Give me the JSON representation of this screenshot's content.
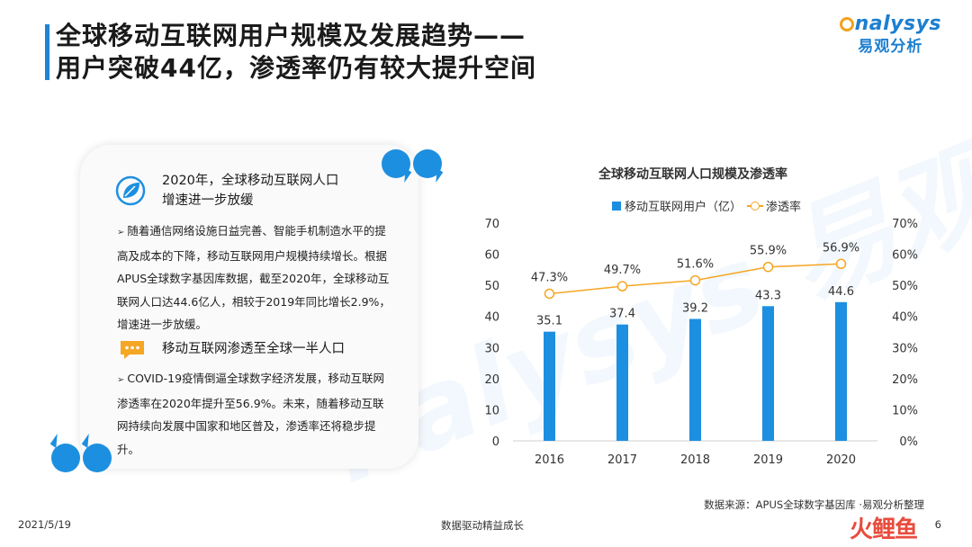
{
  "header": {
    "title_line1": "全球移动互联网用户规模及发展趋势——",
    "title_line2": "用户突破44亿，渗透率仍有较大提升空间",
    "logo_text": "nalysys",
    "logo_sub": "易观分析"
  },
  "watermark": {
    "text": "nalysys 易观分析"
  },
  "card": {
    "section1": {
      "icon": "leaf-globe-icon",
      "heading_line1": "2020年，全球移动互联网人口",
      "heading_line2": "增速进一步放缓",
      "bullet": "随着通信网络设施日益完善、智能手机制造水平的提高及成本的下降，移动互联网用户规模持续增长。根据APUS全球数字基因库数据，截至2020年，全球移动互联网人口达44.6亿人，相较于2019年同比增长2.9%，增速进一步放缓。"
    },
    "section2": {
      "icon": "chat-bubble-icon",
      "heading": "移动互联网渗透至全球一半人口",
      "bullet": "COVID-19疫情倒逼全球数字经济发展，移动互联网渗透率在2020年提升至56.9%。未来，随着移动互联网持续向发展中国家和地区普及，渗透率还将稳步提升。"
    },
    "bullet_marker": "➢"
  },
  "chart_data": {
    "type": "bar",
    "title": "全球移动互联网人口规模及渗透率",
    "categories": [
      "2016",
      "2017",
      "2018",
      "2019",
      "2020"
    ],
    "series": [
      {
        "name": "移动互联网用户（亿）",
        "type": "bar",
        "axis": "left",
        "values": [
          35.1,
          37.4,
          39.2,
          43.3,
          44.6
        ],
        "labels": [
          "35.1",
          "37.4",
          "39.2",
          "43.3",
          "44.6"
        ],
        "color": "#1d8fe0"
      },
      {
        "name": "渗透率",
        "type": "line",
        "axis": "right",
        "values": [
          47.3,
          49.7,
          51.6,
          55.9,
          56.9
        ],
        "labels": [
          "47.3%",
          "49.7%",
          "51.6%",
          "55.9%",
          "56.9%"
        ],
        "color": "#f5a623"
      }
    ],
    "y_left": {
      "min": 0,
      "max": 70,
      "ticks": [
        "0",
        "10",
        "20",
        "30",
        "40",
        "50",
        "60",
        "70"
      ]
    },
    "y_right": {
      "min": 0,
      "max": 70,
      "ticks": [
        "0%",
        "10%",
        "20%",
        "30%",
        "40%",
        "50%",
        "60%",
        "70%"
      ]
    },
    "legend_position": "top",
    "grid": false
  },
  "footer": {
    "source": "数据来源：APUS全球数字基因库 ·易观分析整理",
    "date": "2021/5/19",
    "slogan": "数据驱动精益成长",
    "page": "6",
    "corner_mark": "火鲤鱼"
  }
}
